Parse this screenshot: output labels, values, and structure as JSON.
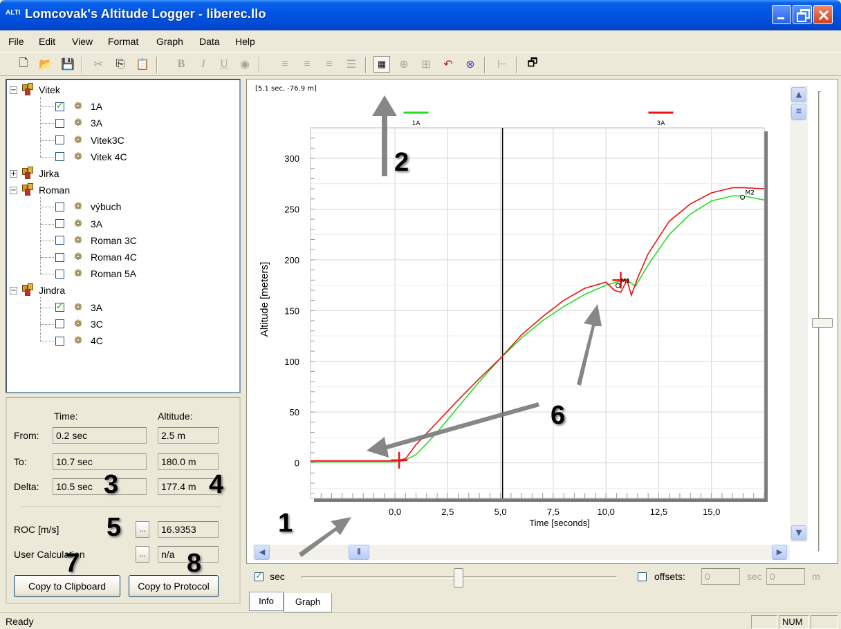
{
  "window": {
    "title": "Lomcovak's Altitude Logger - liberec.llo",
    "app_icon_text": "ALTI"
  },
  "menu": [
    "File",
    "Edit",
    "View",
    "Format",
    "Graph",
    "Data",
    "Help"
  ],
  "toolbar_icons": [
    "new-icon",
    "open-icon",
    "save-icon",
    "cut-icon",
    "copy-icon",
    "paste-icon",
    "bold-icon",
    "italic-icon",
    "underline-icon",
    "palette-icon",
    "align-left-icon",
    "align-center-icon",
    "align-right-icon",
    "list-icon",
    "graph-mode-icon",
    "zoom-x-icon",
    "zoom-region-icon",
    "undo-zoom-icon",
    "zoom-fit-icon",
    "marker-icon",
    "properties-icon"
  ],
  "tree": [
    {
      "type": "group",
      "label": "Vitek",
      "expanded": true,
      "children": [
        {
          "label": "1A",
          "checked": true
        },
        {
          "label": "3A",
          "checked": false
        },
        {
          "label": "Vitek3C",
          "checked": false
        },
        {
          "label": "Vitek 4C",
          "checked": false
        }
      ]
    },
    {
      "type": "group",
      "label": "Jirka",
      "expanded": false,
      "children": []
    },
    {
      "type": "group",
      "label": "Roman",
      "expanded": true,
      "children": [
        {
          "label": "výbuch",
          "checked": false
        },
        {
          "label": "3A",
          "checked": false
        },
        {
          "label": "Roman 3C",
          "checked": false
        },
        {
          "label": "Roman 4C",
          "checked": false
        },
        {
          "label": "Roman 5A",
          "checked": false
        }
      ]
    },
    {
      "type": "group",
      "label": "Jindra",
      "expanded": true,
      "children": [
        {
          "label": "3A",
          "checked": true
        },
        {
          "label": "3C",
          "checked": false
        },
        {
          "label": "4C",
          "checked": false
        }
      ]
    }
  ],
  "info": {
    "col_time": "Time:",
    "col_altitude": "Altitude:",
    "from_label": "From:",
    "from_time": "0.2 sec",
    "from_alt": "2.5 m",
    "to_label": "To:",
    "to_time": "10.7 sec",
    "to_alt": "180.0 m",
    "delta_label": "Delta:",
    "delta_time": "10.5 sec",
    "delta_alt": "177.4 m",
    "roc_label": "ROC [m/s]",
    "roc_value": "16.9353",
    "user_calc_label": "User Calculation",
    "user_calc_value": "n/a",
    "dots": "...",
    "copy_clipboard": "Copy to Clipboard",
    "copy_protocol": "Copy to Protocol"
  },
  "graph": {
    "cursor_readout": "[5.1 sec, -76.9 m]",
    "sec_label": "sec",
    "sec_checked": true,
    "offsets_label": "offsets:",
    "offsets_checked": false,
    "offset_sec_value": "0",
    "offset_sec_unit": "sec",
    "offset_m_value": "0",
    "offset_m_unit": "m"
  },
  "chart_data": {
    "type": "line",
    "xlabel": "Time [seconds]",
    "ylabel": "Altitude [meters]",
    "xlim": [
      -4,
      17.5
    ],
    "ylim": [
      -35,
      330
    ],
    "xticks": [
      0,
      2.5,
      5,
      7.5,
      10,
      12.5,
      15
    ],
    "xtick_labels": [
      "0,0",
      "2,5",
      "5,0",
      "7,5",
      "10,0",
      "12,5",
      "15,0"
    ],
    "yticks": [
      0,
      50,
      100,
      150,
      200,
      250,
      300
    ],
    "ytick_labels": [
      "0",
      "50",
      "100",
      "150",
      "200",
      "250",
      "300"
    ],
    "legend": [
      {
        "name": "1A",
        "color": "#22dd22"
      },
      {
        "name": "3A",
        "color": "#ee1111"
      }
    ],
    "series": [
      {
        "name": "1A",
        "color": "#22dd22",
        "x": [
          -4,
          -2,
          0,
          0.4,
          1,
          2,
          3,
          4,
          5,
          6,
          7,
          8,
          9,
          10,
          10.5,
          11,
          11.4,
          12,
          12.5,
          13,
          14,
          15,
          16,
          16.5,
          17.5
        ],
        "y": [
          1,
          1,
          1,
          2,
          8,
          30,
          55,
          80,
          103,
          123,
          140,
          154,
          166,
          175,
          178,
          180,
          174,
          195,
          210,
          225,
          245,
          258,
          263,
          263,
          259
        ]
      },
      {
        "name": "3A",
        "color": "#ee1111",
        "x": [
          -4,
          -2,
          0,
          0.5,
          1,
          2,
          3,
          4,
          5,
          6,
          7,
          8,
          9,
          10,
          10.4,
          10.7,
          11,
          11.2,
          11.5,
          12,
          12.5,
          13,
          14,
          15,
          16,
          16.5,
          17.5
        ],
        "y": [
          2,
          2,
          2,
          4,
          18,
          40,
          62,
          83,
          103,
          126,
          144,
          160,
          172,
          178,
          170,
          168,
          180,
          165,
          182,
          206,
          222,
          238,
          255,
          266,
          271,
          271,
          270
        ]
      }
    ],
    "markers": [
      {
        "label": "M1",
        "x": 10.7,
        "y": 176
      },
      {
        "label": "M2",
        "x": 16.6,
        "y": 263
      }
    ],
    "vertical_cursor_x": 5.1,
    "selection_crosses": [
      {
        "x": 0.2,
        "y": 2.5
      },
      {
        "x": 10.7,
        "y": 180
      }
    ]
  },
  "annotations": [
    "1",
    "2",
    "3",
    "4",
    "5",
    "6",
    "7",
    "8"
  ],
  "tabs": [
    "Info",
    "Graph"
  ],
  "status": {
    "text": "Ready",
    "num": "NUM"
  }
}
